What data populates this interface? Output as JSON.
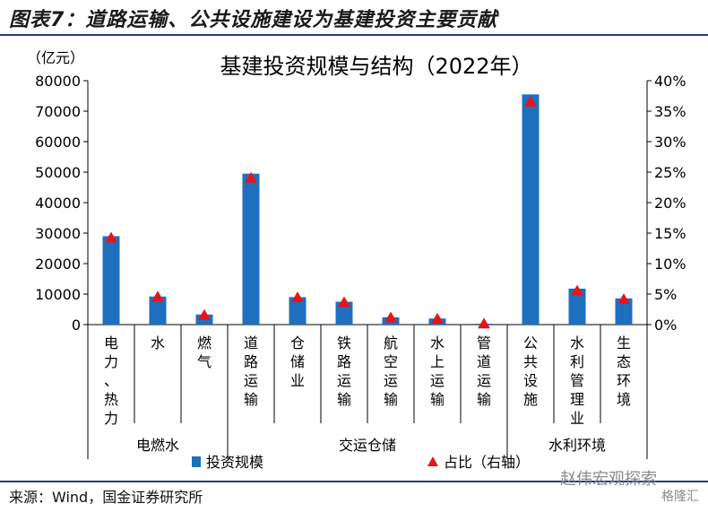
{
  "header": {
    "figure_title": "图表7：道路运输、公共设施建设为基建投资主要贡献"
  },
  "footer": {
    "source": "来源：Wind，国金证券研究所",
    "watermark": "赵伟宏观探索",
    "watermark_badge": "格隆汇"
  },
  "colors": {
    "bar": "#1f6fbf",
    "marker": "#e8141a",
    "rule": "#1f3f7a",
    "axis": "#000000"
  },
  "chart_data": {
    "type": "bar",
    "title": "基建投资规模与结构（2022年）",
    "y_unit_label": "（亿元）",
    "categories": [
      "电力、热力",
      "水",
      "燃气",
      "道路运输",
      "仓储业",
      "铁路运输",
      "航空运输",
      "水上运输",
      "管道运输",
      "公共设施",
      "水利管理业",
      "生态环境"
    ],
    "category_lines": [
      [
        "电",
        "力",
        "、",
        "热",
        "力"
      ],
      [
        "水"
      ],
      [
        "燃",
        "气"
      ],
      [
        "道",
        "路",
        "运",
        "输"
      ],
      [
        "仓",
        "储",
        "业"
      ],
      [
        "铁",
        "路",
        "运",
        "输"
      ],
      [
        "航",
        "空",
        "运",
        "输"
      ],
      [
        "水",
        "上",
        "运",
        "输"
      ],
      [
        "管",
        "道",
        "运",
        "输"
      ],
      [
        "公",
        "共",
        "设",
        "施"
      ],
      [
        "水",
        "利",
        "管",
        "理",
        "业"
      ],
      [
        "生",
        "态",
        "环",
        "境"
      ]
    ],
    "groups": [
      {
        "name": "电燃水",
        "start": 0,
        "end": 2
      },
      {
        "name": "交运仓储",
        "start": 3,
        "end": 8
      },
      {
        "name": "水利环境",
        "start": 9,
        "end": 11
      }
    ],
    "series": [
      {
        "name": "投资规模",
        "kind": "bar",
        "axis": "left",
        "values": [
          29000,
          9200,
          3300,
          49500,
          9000,
          7500,
          2400,
          2000,
          300,
          75500,
          11800,
          8600
        ]
      },
      {
        "name": "占比（右轴）",
        "kind": "marker",
        "axis": "right",
        "values": [
          14.2,
          4.5,
          1.5,
          24.0,
          4.4,
          3.6,
          1.1,
          0.9,
          0.1,
          36.5,
          5.5,
          4.1
        ]
      }
    ],
    "ylim": [
      0,
      80000
    ],
    "yticks": [
      "0",
      "10000",
      "20000",
      "30000",
      "40000",
      "50000",
      "60000",
      "70000",
      "80000"
    ],
    "y2lim": [
      0,
      40
    ],
    "y2ticks": [
      "0%",
      "5%",
      "10%",
      "15%",
      "20%",
      "25%",
      "30%",
      "35%",
      "40%"
    ],
    "legend_position": "bottom",
    "grid": false
  }
}
